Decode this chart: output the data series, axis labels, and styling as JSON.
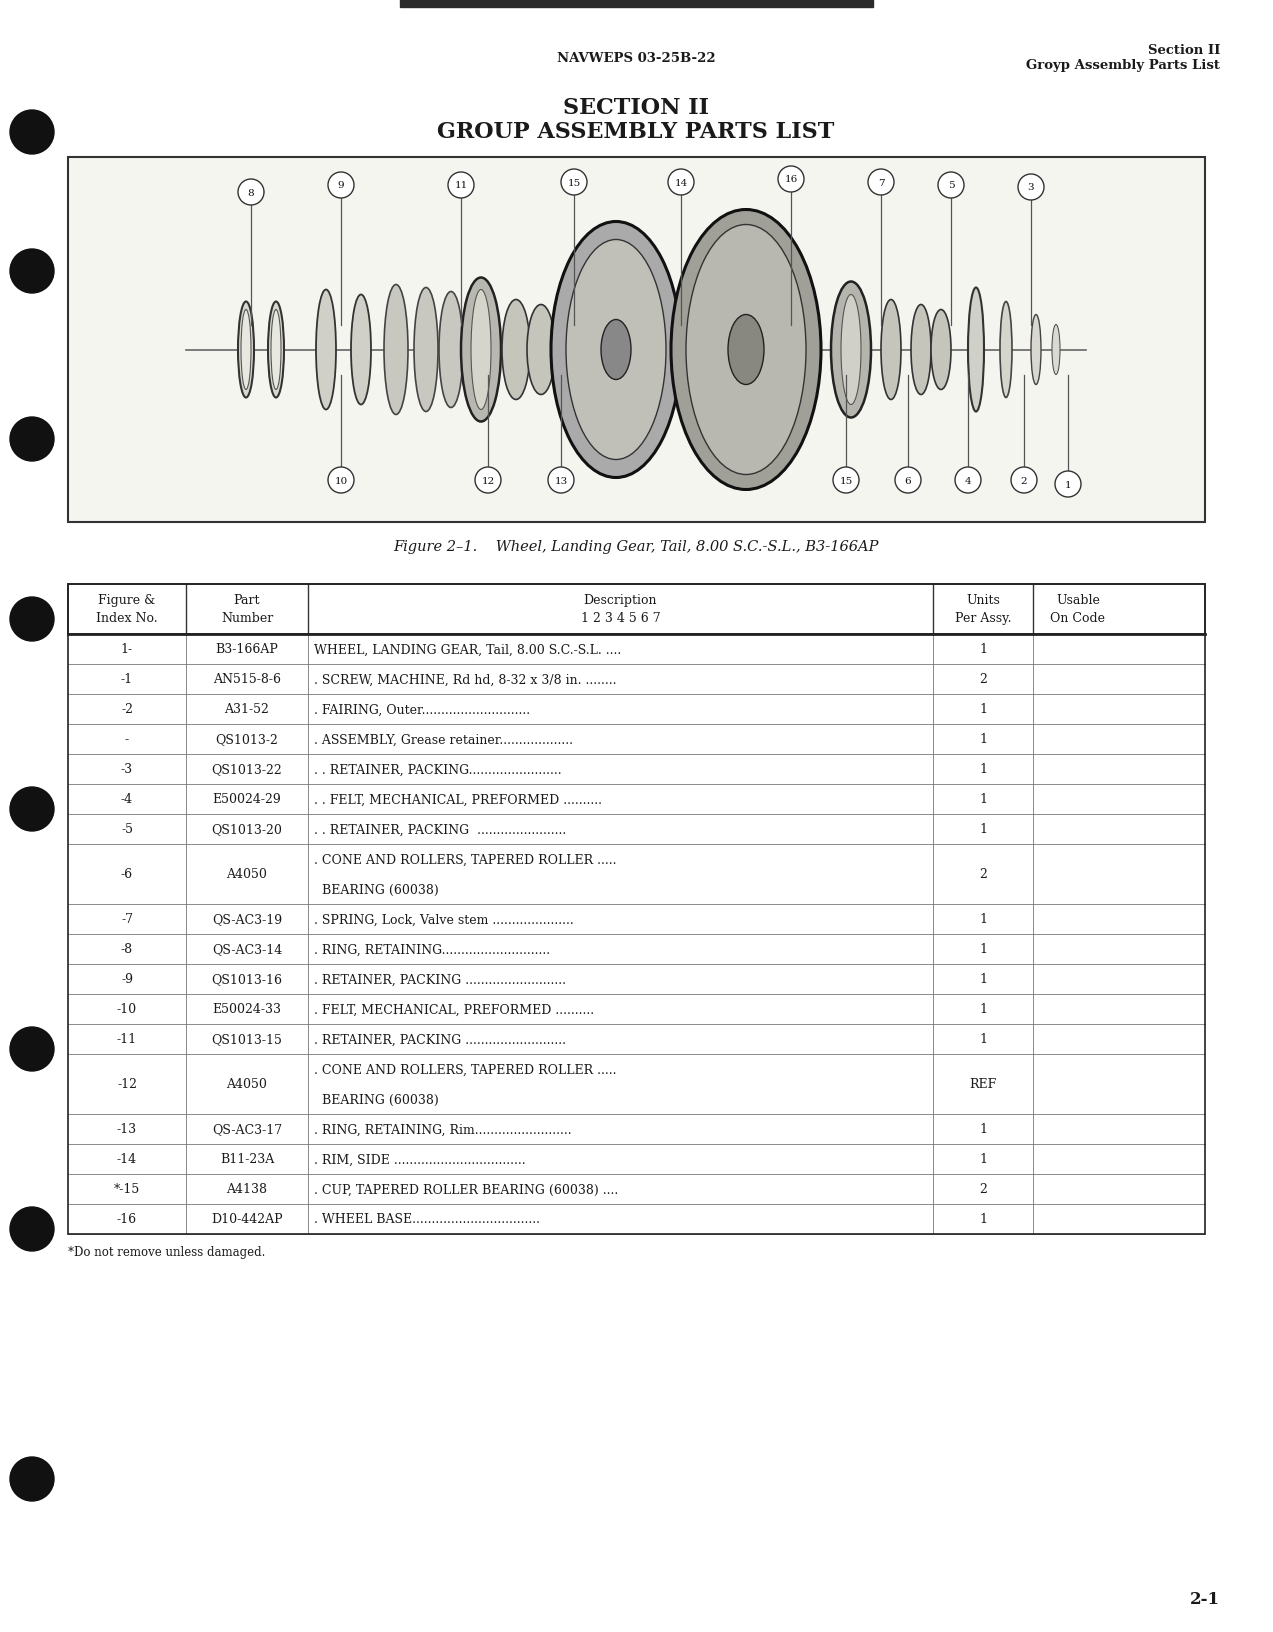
{
  "page_header_center": "NAVWEPS 03-25B-22",
  "page_header_right_line1": "Section II",
  "page_header_right_line2": "Groyp Assembly Parts List",
  "section_title_line1": "SECTION II",
  "section_title_line2": "GROUP ASSEMBLY PARTS LIST",
  "figure_caption": "Figure 2–1.    Wheel, Landing Gear, Tail, 8.00 S.C.-S.L., B3-166AP",
  "table_headers": [
    "Figure &\nIndex No.",
    "Part\nNumber",
    "Description\n1 2 3 4 5 6 7",
    "Units\nPer Assy.",
    "Usable\nOn Code"
  ],
  "table_rows": [
    [
      "1-",
      "B3-166AP",
      "WHEEL, LANDING GEAR, Tail, 8.00 S.C.-S.L. ....",
      "1",
      ""
    ],
    [
      "-1",
      "AN515-8-6",
      ". SCREW, MACHINE, Rd hd, 8-32 x 3/8 in. ........",
      "2",
      ""
    ],
    [
      "-2",
      "A31-52",
      ". FAIRING, Outer............................",
      "1",
      ""
    ],
    [
      "-",
      "QS1013-2",
      ". ASSEMBLY, Grease retainer...................",
      "1",
      ""
    ],
    [
      "-3",
      "QS1013-22",
      ". . RETAINER, PACKING........................",
      "1",
      ""
    ],
    [
      "-4",
      "E50024-29",
      ". . FELT, MECHANICAL, PREFORMED ..........",
      "1",
      ""
    ],
    [
      "-5",
      "QS1013-20",
      ". . RETAINER, PACKING  .......................",
      "1",
      ""
    ],
    [
      "-6",
      "A4050",
      ". CONE AND ROLLERS, TAPERED ROLLER .....\n  BEARING (60038)",
      "2",
      ""
    ],
    [
      "-7",
      "QS-AC3-19",
      ". SPRING, Lock, Valve stem .....................",
      "1",
      ""
    ],
    [
      "-8",
      "QS-AC3-14",
      ". RING, RETAINING............................",
      "1",
      ""
    ],
    [
      "-9",
      "QS1013-16",
      ". RETAINER, PACKING ..........................",
      "1",
      ""
    ],
    [
      "-10",
      "E50024-33",
      ". FELT, MECHANICAL, PREFORMED ..........",
      "1",
      ""
    ],
    [
      "-11",
      "QS1013-15",
      ". RETAINER, PACKING ..........................",
      "1",
      ""
    ],
    [
      "-12",
      "A4050",
      ". CONE AND ROLLERS, TAPERED ROLLER .....\n  BEARING (60038)",
      "REF",
      ""
    ],
    [
      "-13",
      "QS-AC3-17",
      ". RING, RETAINING, Rim.........................",
      "1",
      ""
    ],
    [
      "-14",
      "B11-23A",
      ". RIM, SIDE ..................................",
      "1",
      ""
    ],
    [
      "*-15",
      "A4138",
      ". CUP, TAPERED ROLLER BEARING (60038) ....",
      "2",
      ""
    ],
    [
      "-16",
      "D10-442AP",
      ". WHEEL BASE.................................",
      "1",
      ""
    ]
  ],
  "footnote": "*Do not remove unless damaged.",
  "page_number": "2-1",
  "bg_color": "#ffffff",
  "text_color": "#1a1a1a"
}
